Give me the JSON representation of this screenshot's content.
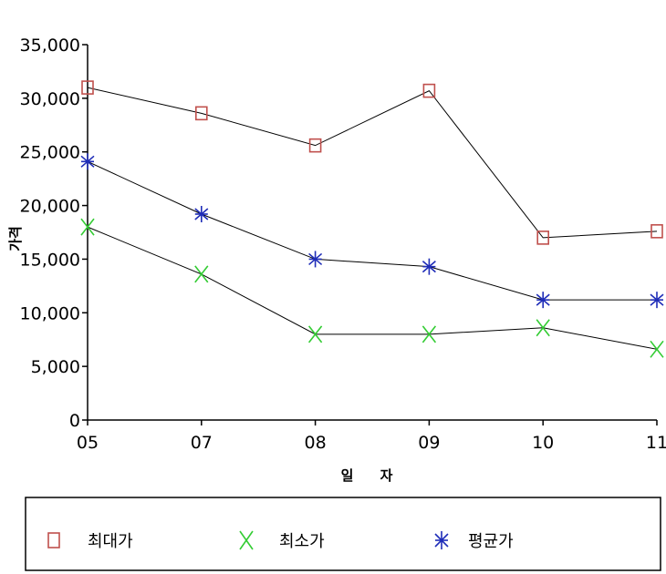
{
  "chart_data": {
    "type": "line",
    "title": "",
    "xlabel": "일 자",
    "ylabel": "가격",
    "categories": [
      "05",
      "07",
      "08",
      "09",
      "10",
      "11"
    ],
    "ylim": [
      0,
      35000
    ],
    "yticks": [
      0,
      5000,
      10000,
      15000,
      20000,
      25000,
      30000,
      35000
    ],
    "ytick_labels": [
      "0",
      "5,000",
      "10,000",
      "15,000",
      "20,000",
      "25,000",
      "30,000",
      "35,000"
    ],
    "grid": false,
    "legend_position": "bottom",
    "series": [
      {
        "name": "최대가",
        "values": [
          31000,
          28600,
          25600,
          30700,
          17000,
          17600
        ],
        "color": "#c0504d",
        "marker": "square"
      },
      {
        "name": "최소가",
        "values": [
          18000,
          13600,
          8000,
          8000,
          8600,
          6600
        ],
        "color": "#33cc33",
        "marker": "x"
      },
      {
        "name": "평균가",
        "values": [
          24100,
          19200,
          15000,
          14300,
          11200,
          11200
        ],
        "color": "#1f2db8",
        "marker": "asterisk"
      }
    ]
  }
}
